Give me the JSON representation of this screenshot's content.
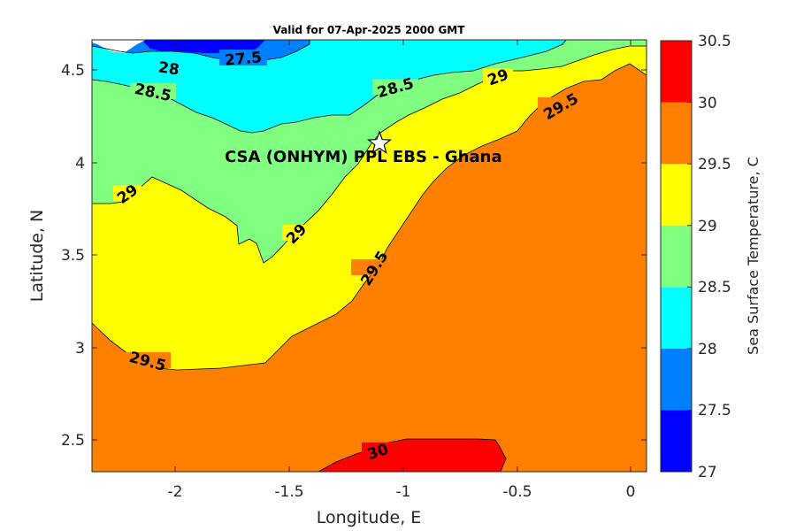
{
  "title": "Valid for 07-Apr-2025 2000 GMT",
  "site_label": "CSA (ONHYM) PPL EBS  - Ghana",
  "chart_data": {
    "type": "contour-map",
    "xlabel": "Longitude, E",
    "ylabel": "Latitude, N",
    "xlim": [
      -2.35,
      0.08
    ],
    "ylim": [
      2.32,
      4.67
    ],
    "xticks": [
      "-2",
      "-1.5",
      "-1",
      "-0.5",
      "0"
    ],
    "yticks": [
      "2.5",
      "3",
      "3.5",
      "4",
      "4.5"
    ],
    "colorbar": {
      "label": "Sea Surface Temperature, C",
      "ticks": [
        "27",
        "27.5",
        "28",
        "28.5",
        "29",
        "29.5",
        "30",
        "30.5"
      ],
      "levels": [
        {
          "min": 27.0,
          "max": 27.5,
          "color": "#0000ff"
        },
        {
          "min": 27.5,
          "max": 28.0,
          "color": "#0080ff"
        },
        {
          "min": 28.0,
          "max": 28.5,
          "color": "#00ffff"
        },
        {
          "min": 28.5,
          "max": 29.0,
          "color": "#80ff80"
        },
        {
          "min": 29.0,
          "max": 29.5,
          "color": "#ffff00"
        },
        {
          "min": 29.5,
          "max": 30.0,
          "color": "#ff8000"
        },
        {
          "min": 30.0,
          "max": 30.5,
          "color": "#ff0000"
        }
      ]
    },
    "contour_labels": [
      "27.5",
      "28",
      "28.5",
      "28.5",
      "29",
      "29",
      "29",
      "29.5",
      "29.5",
      "29.5",
      "30"
    ],
    "site": {
      "lon": -1.1,
      "lat": 4.1,
      "marker": "star"
    }
  }
}
